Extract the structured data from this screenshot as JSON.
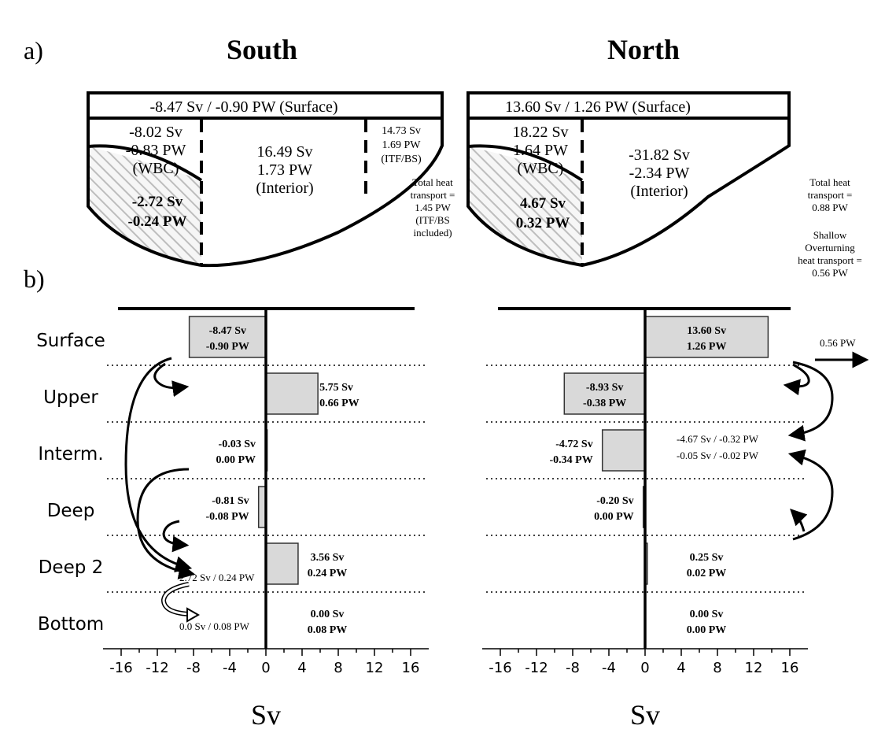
{
  "panel_a_label": "a)",
  "panel_b_label": "b)",
  "south": {
    "title": "South",
    "surface": "-8.47 Sv / -0.90 PW (Surface)",
    "wbc": [
      "-8.02 Sv",
      "-0.83 PW",
      "(WBC)"
    ],
    "hatched": [
      "-2.72 Sv",
      "-0.24 PW"
    ],
    "interior": [
      "16.49 Sv",
      "1.73 PW",
      "(Interior)"
    ],
    "itf": [
      "14.73 Sv",
      "1.69 PW",
      "(ITF/BS)"
    ],
    "note": [
      "Total heat",
      "transport =",
      "1.45 PW",
      "(ITF/BS",
      "included)"
    ]
  },
  "north": {
    "title": "North",
    "surface": "13.60 Sv / 1.26 PW (Surface)",
    "wbc": [
      "18.22 Sv",
      "1.64 PW",
      "(WBC)"
    ],
    "hatched": [
      "4.67 Sv",
      "0.32 PW"
    ],
    "interior": [
      "-31.82 Sv",
      "-2.34 PW",
      "(Interior)"
    ],
    "note_total": [
      "Total heat",
      "transport =",
      "0.88 PW"
    ],
    "note_shallow": [
      "Shallow",
      "Overturning",
      "heat transport =",
      "0.56 PW"
    ]
  },
  "chart_data": [
    {
      "type": "bar",
      "orientation": "horizontal",
      "categories": [
        "Surface",
        "Upper",
        "Interm.",
        "Deep",
        "Deep 2",
        "Bottom"
      ],
      "values": [
        -8.47,
        5.75,
        -0.03,
        -0.81,
        3.56,
        0.0
      ],
      "data_labels": [
        [
          "-8.47 Sv",
          "-0.90 PW"
        ],
        [
          "5.75 Sv",
          "0.66 PW"
        ],
        [
          "-0.03 Sv",
          "0.00 PW"
        ],
        [
          "-0.81 Sv",
          "-0.08 PW"
        ],
        [
          "3.56 Sv",
          "0.24 PW"
        ],
        [
          "0.00 Sv",
          "0.08 PW"
        ]
      ],
      "annotations": [
        "2.72 Sv / 0.24 PW",
        "0.0 Sv / 0.08 PW"
      ],
      "xlabel": "Sv",
      "xlim": [
        -18,
        18
      ],
      "xticks": [
        "-16",
        "-12",
        "-8",
        "-4",
        "0",
        "4",
        "8",
        "12",
        "16"
      ],
      "grid": "dotted layer separators"
    },
    {
      "type": "bar",
      "orientation": "horizontal",
      "categories": [
        "Surface",
        "Upper",
        "Interm.",
        "Deep",
        "Deep 2",
        "Bottom"
      ],
      "values": [
        13.6,
        -8.93,
        -4.72,
        -0.2,
        0.25,
        0.0
      ],
      "data_labels": [
        [
          "13.60 Sv",
          "1.26 PW"
        ],
        [
          "-8.93 Sv",
          "-0.38 PW"
        ],
        [
          "-4.72 Sv",
          "-0.34 PW"
        ],
        [
          "-0.20 Sv",
          "0.00 PW"
        ],
        [
          "0.25 Sv",
          "0.02 PW"
        ],
        [
          "0.00 Sv",
          "0.00 PW"
        ]
      ],
      "annotations": [
        "0.56 PW",
        "-4.67 Sv / -0.32 PW",
        "-0.05 Sv / -0.02 PW"
      ],
      "xlabel": "Sv",
      "xlim": [
        -18,
        18
      ],
      "xticks": [
        "-16",
        "-12",
        "-8",
        "-4",
        "0",
        "4",
        "8",
        "12",
        "16"
      ],
      "grid": "dotted layer separators"
    }
  ],
  "colors": {
    "bar_fill": "#d9d9d9",
    "hatch": "#bbbbbb",
    "line": "#000000"
  }
}
